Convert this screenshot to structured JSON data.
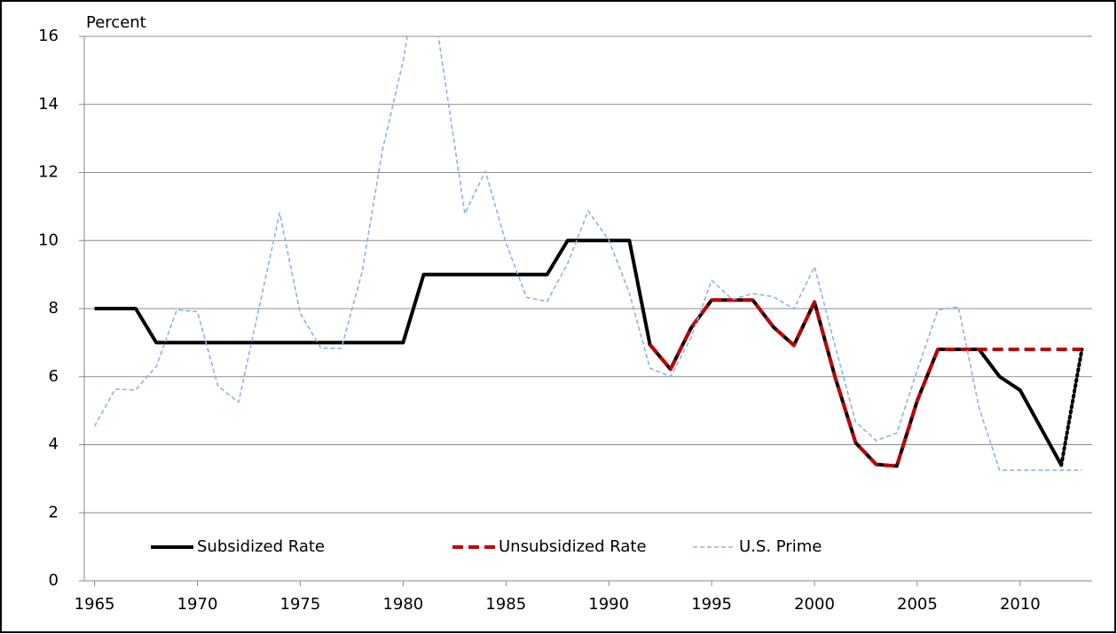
{
  "chart_data": {
    "type": "line",
    "y_label": "Percent",
    "x": [
      1965,
      1966,
      1967,
      1968,
      1969,
      1970,
      1971,
      1972,
      1973,
      1974,
      1975,
      1976,
      1977,
      1978,
      1979,
      1980,
      1981,
      1982,
      1983,
      1984,
      1985,
      1986,
      1987,
      1988,
      1989,
      1990,
      1991,
      1992,
      1993,
      1994,
      1995,
      1996,
      1997,
      1998,
      1999,
      2000,
      2001,
      2002,
      2003,
      2004,
      2005,
      2006,
      2007,
      2008,
      2009,
      2010,
      2011,
      2012,
      2013
    ],
    "series": [
      {
        "name": "Subsidized Rate",
        "color": "#000000",
        "style": "solid",
        "width": 4,
        "dotted_last_segment": true,
        "values": [
          8,
          8,
          8,
          7,
          7,
          7,
          7,
          7,
          7,
          7,
          7,
          7,
          7,
          7,
          7,
          7,
          9,
          9,
          9,
          9,
          9,
          9,
          9,
          10,
          10,
          10,
          10,
          6.94,
          6.22,
          7.43,
          8.25,
          8.25,
          8.25,
          7.46,
          6.92,
          8.19,
          5.99,
          4.06,
          3.42,
          3.37,
          5.3,
          6.8,
          6.8,
          6.8,
          6.0,
          5.6,
          4.5,
          3.4,
          6.8
        ]
      },
      {
        "name": "Unsubsidized Rate",
        "color": "#c00000",
        "style": "dashed",
        "width": 4,
        "values": [
          null,
          null,
          null,
          null,
          null,
          null,
          null,
          null,
          null,
          null,
          null,
          null,
          null,
          null,
          null,
          null,
          null,
          null,
          null,
          null,
          null,
          null,
          null,
          null,
          null,
          null,
          null,
          6.94,
          6.22,
          7.43,
          8.25,
          8.25,
          8.25,
          7.46,
          6.92,
          8.19,
          5.99,
          4.06,
          3.42,
          3.37,
          5.3,
          6.8,
          6.8,
          6.8,
          6.8,
          6.8,
          6.8,
          6.8,
          6.8
        ]
      },
      {
        "name": "U.S. Prime",
        "color": "#8db4e2",
        "style": "dashed-thin",
        "width": 1.6,
        "values": [
          4.54,
          5.63,
          5.61,
          6.3,
          7.96,
          7.91,
          5.72,
          5.25,
          8.03,
          10.81,
          7.86,
          6.84,
          6.83,
          9.06,
          12.67,
          15.27,
          18.87,
          14.86,
          10.79,
          12.04,
          9.93,
          8.33,
          8.21,
          9.32,
          10.87,
          10.01,
          8.46,
          6.25,
          6.0,
          7.15,
          8.83,
          8.27,
          8.44,
          8.35,
          7.99,
          9.23,
          6.91,
          4.67,
          4.12,
          4.34,
          6.19,
          7.96,
          8.05,
          5.09,
          3.25,
          3.25,
          3.25,
          3.25,
          3.25
        ]
      }
    ],
    "xlim": [
      1964.5,
      2013.5
    ],
    "xticks": [
      1965,
      1970,
      1975,
      1980,
      1985,
      1990,
      1995,
      2000,
      2005,
      2010
    ],
    "ylim": [
      0,
      16
    ],
    "yticks": [
      0,
      2,
      4,
      6,
      8,
      10,
      12,
      14,
      16
    ],
    "grid": true,
    "legend": "bottom-left"
  }
}
